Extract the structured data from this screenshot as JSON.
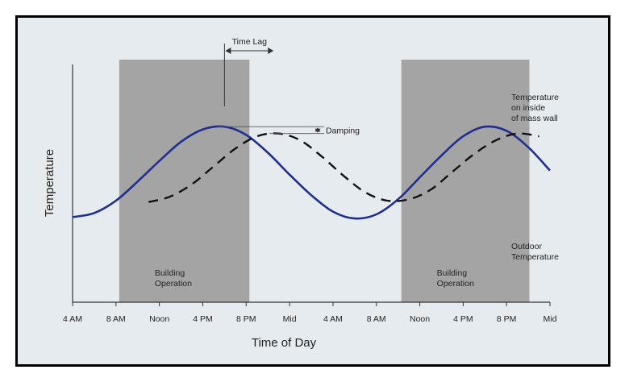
{
  "chart_data": {
    "type": "line",
    "title": "",
    "xlabel": "Time of Day",
    "ylabel": "Temperature",
    "x_ticks": [
      "4 AM",
      "8 AM",
      "Noon",
      "4 PM",
      "8 PM",
      "Mid",
      "4 AM",
      "8 AM",
      "Noon",
      "4 PM",
      "8 PM",
      "Mid"
    ],
    "x_unit": "hours since 4 AM (day 1)",
    "xlim": [
      0,
      44
    ],
    "ylim": [
      0,
      1
    ],
    "grid": false,
    "series": [
      {
        "name": "Outdoor Temperature",
        "style": "solid",
        "color": "#1f2f8f",
        "x": [
          0,
          2,
          4,
          6,
          8,
          10,
          12,
          14,
          16,
          18,
          20,
          22,
          24,
          26,
          28,
          30,
          32,
          34,
          36,
          38,
          40,
          42,
          44
        ],
        "y": [
          0.28,
          0.31,
          0.4,
          0.54,
          0.69,
          0.83,
          0.92,
          0.94,
          0.88,
          0.75,
          0.59,
          0.44,
          0.32,
          0.27,
          0.3,
          0.41,
          0.57,
          0.73,
          0.87,
          0.94,
          0.91,
          0.79,
          0.62
        ]
      },
      {
        "name": "Temperature on inside of mass wall",
        "style": "dashed",
        "color": "#111111",
        "x": [
          7,
          9,
          11,
          13,
          15,
          17,
          19,
          21,
          23,
          25,
          27,
          29,
          31,
          33,
          35,
          37,
          39,
          41,
          43
        ],
        "y": [
          0.39,
          0.43,
          0.52,
          0.65,
          0.78,
          0.87,
          0.89,
          0.84,
          0.72,
          0.58,
          0.46,
          0.4,
          0.41,
          0.48,
          0.61,
          0.74,
          0.84,
          0.89,
          0.87
        ]
      }
    ],
    "shaded_regions": [
      {
        "label": "Building Operation",
        "x": [
          4.3,
          16.3
        ]
      },
      {
        "label": "Building Operation",
        "x": [
          30.3,
          42.1
        ]
      }
    ],
    "annotations": {
      "time_lag": "Time Lag",
      "damping": "Damping",
      "inside_label": [
        "Temperature",
        "on inside",
        "of mass wall"
      ],
      "outdoor_label": [
        "Outdoor",
        "Temperature"
      ]
    },
    "colors": {
      "background": "#e6ebef",
      "shade": "#a4a4a4",
      "outdoor_line": "#1f2f8f",
      "wall_line": "#111111"
    }
  }
}
